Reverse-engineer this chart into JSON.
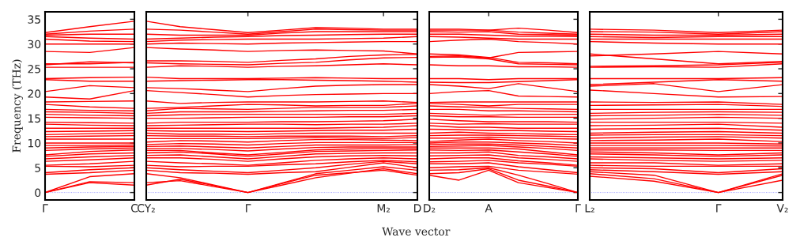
{
  "chart_data": [
    {
      "type": "line",
      "color": "#ff0000",
      "ylabel": "Frequency (THz)",
      "ylim": [
        -1.5,
        36.5
      ],
      "yticks": [
        0,
        5,
        10,
        15,
        20,
        25,
        30,
        35
      ],
      "categories": [
        "Γ",
        null,
        "C"
      ],
      "ref_lines": [
        {
          "axis": "y",
          "value": 0,
          "color": "#8080ff",
          "line_style": "dotted"
        }
      ],
      "series": [
        {
          "values": [
            0,
            2.0,
            1.5
          ]
        },
        {
          "values": [
            0,
            2.2,
            2.0
          ]
        },
        {
          "values": [
            0,
            3.2,
            3.8
          ]
        },
        {
          "values": [
            3.7,
            4.0,
            4.5
          ]
        },
        {
          "values": [
            4.0,
            4.6,
            5.0
          ]
        },
        {
          "values": [
            5.3,
            5.2,
            5.5
          ]
        },
        {
          "values": [
            5.5,
            5.8,
            6.3
          ]
        },
        {
          "values": [
            6.3,
            6.6,
            7.0
          ]
        },
        {
          "values": [
            6.8,
            7.2,
            7.5
          ]
        },
        {
          "values": [
            7.3,
            7.8,
            8.0
          ]
        },
        {
          "values": [
            7.6,
            8.3,
            8.6
          ]
        },
        {
          "values": [
            8.5,
            8.8,
            9.0
          ]
        },
        {
          "values": [
            9.0,
            9.2,
            9.3
          ]
        },
        {
          "values": [
            9.5,
            9.5,
            9.6
          ]
        },
        {
          "values": [
            10.0,
            10.0,
            10.0
          ]
        },
        {
          "values": [
            10.8,
            10.8,
            10.8
          ]
        },
        {
          "values": [
            11.3,
            11.4,
            11.5
          ]
        },
        {
          "values": [
            11.7,
            11.9,
            12.0
          ]
        },
        {
          "values": [
            12.3,
            12.4,
            12.5
          ]
        },
        {
          "values": [
            13.0,
            13.0,
            13.0
          ]
        },
        {
          "values": [
            13.8,
            13.6,
            13.5
          ]
        },
        {
          "values": [
            14.2,
            14.1,
            14.0
          ]
        },
        {
          "values": [
            15.2,
            15.1,
            15.0
          ]
        },
        {
          "values": [
            15.8,
            15.6,
            15.5
          ]
        },
        {
          "values": [
            16.3,
            16.2,
            16.0
          ]
        },
        {
          "values": [
            16.8,
            16.6,
            16.5
          ]
        },
        {
          "values": [
            17.8,
            17.3,
            17.0
          ]
        },
        {
          "values": [
            18.3,
            18.4,
            18.5
          ]
        },
        {
          "values": [
            19.3,
            18.9,
            20.6
          ]
        },
        {
          "values": [
            20.4,
            21.6,
            21.2
          ]
        },
        {
          "values": [
            22.8,
            22.5,
            22.5
          ]
        },
        {
          "values": [
            23.0,
            23.2,
            23.3
          ]
        },
        {
          "values": [
            25.3,
            25.3,
            25.3
          ]
        },
        {
          "values": [
            25.8,
            26.4,
            26.2
          ]
        },
        {
          "values": [
            26.0,
            26.0,
            26.3
          ]
        },
        {
          "values": [
            28.5,
            28.3,
            29.3
          ]
        },
        {
          "values": [
            30.0,
            30.0,
            30.0
          ]
        },
        {
          "values": [
            31.0,
            30.6,
            30.5
          ]
        },
        {
          "values": [
            31.5,
            31.2,
            31.0
          ]
        },
        {
          "values": [
            31.8,
            32.0,
            32.0
          ]
        },
        {
          "values": [
            32.0,
            32.6,
            33.0
          ]
        },
        {
          "values": [
            32.3,
            33.5,
            34.6
          ]
        }
      ]
    },
    {
      "type": "line",
      "color": "#ff0000",
      "tick_labels": "x",
      "ylim": [
        -1.5,
        36.5
      ],
      "yticks": [
        0,
        5,
        10,
        15,
        20,
        25,
        30,
        35
      ],
      "categories": [
        "CY₂",
        null,
        null,
        "Γ",
        null,
        null,
        null,
        "M₂",
        "D"
      ],
      "ref_lines": [
        {
          "axis": "y",
          "value": 0,
          "color": "#8080ff",
          "line_style": "dotted"
        }
      ],
      "series": [
        {
          "values": [
            1.5,
            2.7,
            1.4,
            0,
            1.8,
            3.5,
            4.0,
            4.5,
            3.5
          ]
        },
        {
          "values": [
            2.0,
            2.4,
            1.2,
            0,
            1.5,
            3.0,
            3.9,
            4.8,
            3.8
          ]
        },
        {
          "values": [
            3.8,
            3.0,
            1.5,
            0,
            1.9,
            3.8,
            4.5,
            5.2,
            4.5
          ]
        },
        {
          "values": [
            4.5,
            4.0,
            3.9,
            3.7,
            4.0,
            4.2,
            5.1,
            6.0,
            5.0
          ]
        },
        {
          "values": [
            5.0,
            4.6,
            4.3,
            4.0,
            4.5,
            5.0,
            5.7,
            6.3,
            5.8
          ]
        },
        {
          "values": [
            5.5,
            5.2,
            5.3,
            5.3,
            5.6,
            5.8,
            6.2,
            6.5,
            6.2
          ]
        },
        {
          "values": [
            6.3,
            6.0,
            5.8,
            5.5,
            6.0,
            6.5,
            6.8,
            7.0,
            6.8
          ]
        },
        {
          "values": [
            7.0,
            7.0,
            6.7,
            6.3,
            6.8,
            7.2,
            7.4,
            7.5,
            7.4
          ]
        },
        {
          "values": [
            7.5,
            7.6,
            7.2,
            6.8,
            7.3,
            7.8,
            7.9,
            8.0,
            8.0
          ]
        },
        {
          "values": [
            8.0,
            8.2,
            7.8,
            7.3,
            7.8,
            8.3,
            8.4,
            8.5,
            8.6
          ]
        },
        {
          "values": [
            8.5,
            8.5,
            8.0,
            7.6,
            8.1,
            8.6,
            8.8,
            8.9,
            8.9
          ]
        },
        {
          "values": [
            8.9,
            8.9,
            8.7,
            8.4,
            8.8,
            9.1,
            9.2,
            9.2,
            9.2
          ]
        },
        {
          "values": [
            9.3,
            9.4,
            9.2,
            9.0,
            9.3,
            9.6,
            9.6,
            9.6,
            9.7
          ]
        },
        {
          "values": [
            9.7,
            9.9,
            9.8,
            9.6,
            9.9,
            10.1,
            10.1,
            10.1,
            10.1
          ]
        },
        {
          "values": [
            10.2,
            10.5,
            10.4,
            10.2,
            10.5,
            10.7,
            10.7,
            10.6,
            10.5
          ]
        },
        {
          "values": [
            10.9,
            10.9,
            10.9,
            10.9,
            11.0,
            11.1,
            11.0,
            10.9,
            11.1
          ]
        },
        {
          "values": [
            11.5,
            11.4,
            11.4,
            11.3,
            11.4,
            11.4,
            11.4,
            11.3,
            11.5
          ]
        },
        {
          "values": [
            12.0,
            11.8,
            11.8,
            11.7,
            11.9,
            12.0,
            12.0,
            12.0,
            12.0
          ]
        },
        {
          "values": [
            12.5,
            12.4,
            12.4,
            12.3,
            12.4,
            12.5,
            12.6,
            12.6,
            12.8
          ]
        },
        {
          "values": [
            13.0,
            13.0,
            13.0,
            13.0,
            13.0,
            13.0,
            13.1,
            13.2,
            13.5
          ]
        },
        {
          "values": [
            13.5,
            13.6,
            13.7,
            13.8,
            13.8,
            13.7,
            13.8,
            13.8,
            14.0
          ]
        },
        {
          "values": [
            14.0,
            14.2,
            14.2,
            14.2,
            14.3,
            14.3,
            14.4,
            14.5,
            14.8
          ]
        },
        {
          "values": [
            15.0,
            15.0,
            15.1,
            15.2,
            15.2,
            15.2,
            15.3,
            15.3,
            15.5
          ]
        },
        {
          "values": [
            15.5,
            15.7,
            15.8,
            15.8,
            15.8,
            15.8,
            15.8,
            15.8,
            16.0
          ]
        },
        {
          "values": [
            16.0,
            16.3,
            16.3,
            16.3,
            16.4,
            16.5,
            16.6,
            16.6,
            16.8
          ]
        },
        {
          "values": [
            16.5,
            17.0,
            16.9,
            16.8,
            17.0,
            17.2,
            17.2,
            17.2,
            17.5
          ]
        },
        {
          "values": [
            17.0,
            17.2,
            17.5,
            17.8,
            17.7,
            17.5,
            17.6,
            17.6,
            18.0
          ]
        },
        {
          "values": [
            18.5,
            18.0,
            18.2,
            18.3,
            18.3,
            18.3,
            18.4,
            18.5,
            18.2
          ]
        },
        {
          "values": [
            20.6,
            20.2,
            19.8,
            19.3,
            19.6,
            19.8,
            19.9,
            20.0,
            20.0
          ]
        },
        {
          "values": [
            21.2,
            21.0,
            20.7,
            20.4,
            21.0,
            21.5,
            21.7,
            21.8,
            21.8
          ]
        },
        {
          "values": [
            22.5,
            22.6,
            22.7,
            22.8,
            22.8,
            22.7,
            22.6,
            22.5,
            22.3
          ]
        },
        {
          "values": [
            23.3,
            23.0,
            23.0,
            23.0,
            23.1,
            23.2,
            23.1,
            23.0,
            23.0
          ]
        },
        {
          "values": [
            25.3,
            25.6,
            25.5,
            25.3,
            25.5,
            25.6,
            25.8,
            26.0,
            25.8
          ]
        },
        {
          "values": [
            26.2,
            26.0,
            25.9,
            25.8,
            26.1,
            26.3,
            26.8,
            27.2,
            27.3
          ]
        },
        {
          "values": [
            26.6,
            26.6,
            26.5,
            26.3,
            26.7,
            27.0,
            27.5,
            27.8,
            27.9
          ]
        },
        {
          "values": [
            29.3,
            29.0,
            28.8,
            28.5,
            28.7,
            28.8,
            28.7,
            28.6,
            28.0
          ]
        },
        {
          "values": [
            30.0,
            30.2,
            30.1,
            30.0,
            30.2,
            30.3,
            30.4,
            30.5,
            30.5
          ]
        },
        {
          "values": [
            30.5,
            30.8,
            30.9,
            31.0,
            31.0,
            31.0,
            31.1,
            31.2,
            31.5
          ]
        },
        {
          "values": [
            31.0,
            31.2,
            31.4,
            31.5,
            31.7,
            31.8,
            31.9,
            32.0,
            32.0
          ]
        },
        {
          "values": [
            32.0,
            31.8,
            31.8,
            31.8,
            32.2,
            32.5,
            32.5,
            32.5,
            32.5
          ]
        },
        {
          "values": [
            33.0,
            32.8,
            32.4,
            32.0,
            32.5,
            33.0,
            32.9,
            32.8,
            32.8
          ]
        },
        {
          "values": [
            34.6,
            33.5,
            32.9,
            32.3,
            32.8,
            33.3,
            33.2,
            33.0,
            33.0
          ]
        }
      ]
    },
    {
      "type": "line",
      "color": "#ff0000",
      "tick_labels": "x",
      "xlabel": "Wave vector",
      "ylim": [
        -1.5,
        36.5
      ],
      "yticks": [
        0,
        5,
        10,
        15,
        20,
        25,
        30,
        35
      ],
      "categories": [
        "D₂",
        null,
        "A",
        null,
        null,
        "Γ"
      ],
      "ref_lines": [
        {
          "axis": "y",
          "value": 0,
          "color": "#8080ff",
          "line_style": "dotted"
        }
      ],
      "series": [
        {
          "values": [
            3.5,
            2.5,
            4.5,
            2.0,
            1.0,
            0
          ]
        },
        {
          "values": [
            3.8,
            4.0,
            4.8,
            2.5,
            1.3,
            0
          ]
        },
        {
          "values": [
            4.5,
            4.6,
            5.0,
            3.5,
            1.8,
            0
          ]
        },
        {
          "values": [
            5.0,
            5.2,
            5.3,
            4.5,
            4.1,
            3.7
          ]
        },
        {
          "values": [
            5.8,
            5.8,
            6.0,
            5.2,
            4.6,
            4.0
          ]
        },
        {
          "values": [
            6.2,
            6.3,
            6.5,
            6.0,
            5.7,
            5.3
          ]
        },
        {
          "values": [
            6.8,
            7.0,
            7.0,
            6.4,
            6.0,
            5.5
          ]
        },
        {
          "values": [
            7.4,
            7.5,
            7.6,
            7.0,
            6.7,
            6.3
          ]
        },
        {
          "values": [
            8.0,
            8.0,
            8.2,
            7.5,
            7.2,
            6.8
          ]
        },
        {
          "values": [
            8.6,
            8.5,
            8.6,
            8.2,
            7.8,
            7.3
          ]
        },
        {
          "values": [
            9.0,
            9.0,
            9.0,
            8.8,
            8.2,
            7.6
          ]
        },
        {
          "values": [
            9.3,
            9.4,
            9.5,
            9.2,
            8.9,
            8.5
          ]
        },
        {
          "values": [
            9.7,
            9.8,
            9.8,
            9.6,
            9.3,
            9.0
          ]
        },
        {
          "values": [
            10.0,
            10.2,
            10.2,
            10.0,
            9.8,
            9.5
          ]
        },
        {
          "values": [
            10.3,
            10.6,
            10.8,
            10.5,
            10.3,
            10.0
          ]
        },
        {
          "values": [
            11.0,
            11.0,
            11.2,
            11.0,
            10.9,
            10.8
          ]
        },
        {
          "values": [
            11.5,
            11.6,
            11.6,
            11.5,
            11.4,
            11.3
          ]
        },
        {
          "values": [
            12.0,
            12.2,
            12.0,
            11.9,
            11.8,
            11.7
          ]
        },
        {
          "values": [
            12.8,
            12.7,
            12.5,
            12.5,
            12.4,
            12.3
          ]
        },
        {
          "values": [
            13.5,
            13.2,
            13.2,
            13.0,
            13.0,
            13.0
          ]
        },
        {
          "values": [
            14.0,
            13.8,
            13.9,
            13.8,
            13.8,
            13.8
          ]
        },
        {
          "values": [
            14.8,
            14.5,
            14.3,
            14.3,
            14.3,
            14.2
          ]
        },
        {
          "values": [
            15.5,
            15.3,
            15.3,
            15.2,
            15.2,
            15.2
          ]
        },
        {
          "values": [
            16.0,
            15.8,
            15.6,
            15.8,
            15.8,
            15.8
          ]
        },
        {
          "values": [
            16.8,
            16.8,
            16.5,
            16.5,
            16.4,
            16.3
          ]
        },
        {
          "values": [
            17.5,
            17.3,
            17.2,
            17.0,
            16.9,
            16.8
          ]
        },
        {
          "values": [
            18.0,
            17.8,
            17.5,
            17.8,
            17.8,
            17.8
          ]
        },
        {
          "values": [
            18.2,
            18.3,
            18.3,
            18.3,
            18.3,
            18.3
          ]
        },
        {
          "values": [
            20.0,
            20.4,
            20.6,
            19.5,
            19.4,
            19.3
          ]
        },
        {
          "values": [
            21.8,
            21.5,
            21.0,
            22.0,
            21.2,
            20.4
          ]
        },
        {
          "values": [
            22.3,
            22.2,
            22.2,
            22.4,
            22.6,
            22.8
          ]
        },
        {
          "values": [
            23.0,
            23.0,
            22.8,
            23.0,
            23.0,
            23.0
          ]
        },
        {
          "values": [
            25.8,
            25.6,
            25.6,
            25.4,
            25.4,
            25.3
          ]
        },
        {
          "values": [
            27.3,
            27.4,
            27.0,
            26.0,
            25.9,
            25.8
          ]
        },
        {
          "values": [
            27.5,
            27.6,
            27.2,
            28.3,
            28.4,
            28.5
          ]
        },
        {
          "values": [
            28.0,
            27.8,
            27.3,
            26.3,
            26.2,
            26.0
          ]
        },
        {
          "values": [
            30.5,
            30.8,
            31.0,
            30.5,
            30.3,
            30.0
          ]
        },
        {
          "values": [
            31.5,
            31.4,
            31.2,
            31.0,
            31.0,
            31.0
          ]
        },
        {
          "values": [
            32.0,
            32.0,
            31.8,
            31.6,
            31.6,
            31.5
          ]
        },
        {
          "values": [
            32.5,
            32.4,
            32.5,
            32.0,
            31.9,
            31.8
          ]
        },
        {
          "values": [
            32.8,
            32.8,
            32.8,
            32.4,
            32.2,
            32.0
          ]
        },
        {
          "values": [
            33.0,
            33.0,
            32.8,
            33.2,
            32.8,
            32.3
          ]
        }
      ]
    },
    {
      "type": "line",
      "color": "#ff0000",
      "tick_labels": "x",
      "ylim": [
        -1.5,
        36.5
      ],
      "yticks": [
        0,
        5,
        10,
        15,
        20,
        25,
        30,
        35
      ],
      "categories": [
        "L₂",
        null,
        "Γ",
        "V₂"
      ],
      "ref_lines": [
        {
          "axis": "y",
          "value": 0,
          "color": "#8080ff",
          "line_style": "dotted"
        }
      ],
      "series": [
        {
          "values": [
            3.3,
            2.3,
            0,
            2.5
          ]
        },
        {
          "values": [
            3.8,
            2.8,
            0,
            3.5
          ]
        },
        {
          "values": [
            4.2,
            3.5,
            0,
            3.8
          ]
        },
        {
          "values": [
            4.6,
            4.2,
            3.7,
            4.2
          ]
        },
        {
          "values": [
            5.0,
            4.8,
            4.0,
            4.8
          ]
        },
        {
          "values": [
            5.5,
            5.3,
            5.3,
            5.3
          ]
        },
        {
          "values": [
            6.0,
            6.0,
            5.5,
            5.8
          ]
        },
        {
          "values": [
            6.8,
            6.5,
            6.3,
            6.5
          ]
        },
        {
          "values": [
            7.2,
            7.0,
            6.8,
            7.0
          ]
        },
        {
          "values": [
            7.8,
            7.6,
            7.3,
            7.6
          ]
        },
        {
          "values": [
            8.2,
            8.0,
            7.6,
            8.0
          ]
        },
        {
          "values": [
            8.6,
            8.6,
            8.5,
            8.5
          ]
        },
        {
          "values": [
            9.0,
            9.0,
            9.0,
            9.0
          ]
        },
        {
          "values": [
            9.5,
            9.5,
            9.5,
            9.4
          ]
        },
        {
          "values": [
            10.0,
            10.0,
            10.0,
            9.8
          ]
        },
        {
          "values": [
            10.5,
            10.6,
            10.8,
            10.3
          ]
        },
        {
          "values": [
            11.0,
            11.2,
            11.3,
            11.0
          ]
        },
        {
          "values": [
            11.6,
            11.7,
            11.7,
            11.5
          ]
        },
        {
          "values": [
            12.0,
            12.2,
            12.3,
            12.0
          ]
        },
        {
          "values": [
            12.8,
            12.9,
            13.0,
            12.6
          ]
        },
        {
          "values": [
            13.5,
            13.6,
            13.8,
            13.2
          ]
        },
        {
          "values": [
            14.2,
            14.2,
            14.2,
            14.0
          ]
        },
        {
          "values": [
            14.8,
            15.0,
            15.2,
            15.0
          ]
        },
        {
          "values": [
            15.5,
            15.6,
            15.8,
            15.6
          ]
        },
        {
          "values": [
            16.0,
            16.2,
            16.3,
            16.2
          ]
        },
        {
          "values": [
            16.8,
            16.8,
            16.8,
            16.8
          ]
        },
        {
          "values": [
            17.6,
            17.7,
            17.8,
            17.4
          ]
        },
        {
          "values": [
            18.3,
            18.2,
            18.3,
            17.8
          ]
        },
        {
          "values": [
            20.7,
            20.0,
            19.3,
            19.4
          ]
        },
        {
          "values": [
            21.5,
            22.0,
            20.4,
            21.8
          ]
        },
        {
          "values": [
            21.8,
            22.3,
            22.8,
            22.5
          ]
        },
        {
          "values": [
            23.0,
            23.0,
            23.0,
            23.2
          ]
        },
        {
          "values": [
            25.3,
            25.4,
            25.3,
            26.0
          ]
        },
        {
          "values": [
            25.5,
            25.6,
            25.8,
            26.3
          ]
        },
        {
          "values": [
            27.6,
            28.0,
            28.5,
            28.0
          ]
        },
        {
          "values": [
            28.0,
            27.0,
            26.0,
            26.5
          ]
        },
        {
          "values": [
            30.5,
            30.2,
            30.0,
            30.0
          ]
        },
        {
          "values": [
            31.0,
            31.0,
            31.0,
            31.0
          ]
        },
        {
          "values": [
            31.5,
            31.3,
            31.5,
            31.5
          ]
        },
        {
          "values": [
            32.0,
            31.8,
            31.8,
            32.0
          ]
        },
        {
          "values": [
            32.5,
            32.4,
            32.0,
            32.5
          ]
        },
        {
          "values": [
            33.0,
            32.8,
            32.3,
            32.8
          ]
        }
      ]
    }
  ]
}
